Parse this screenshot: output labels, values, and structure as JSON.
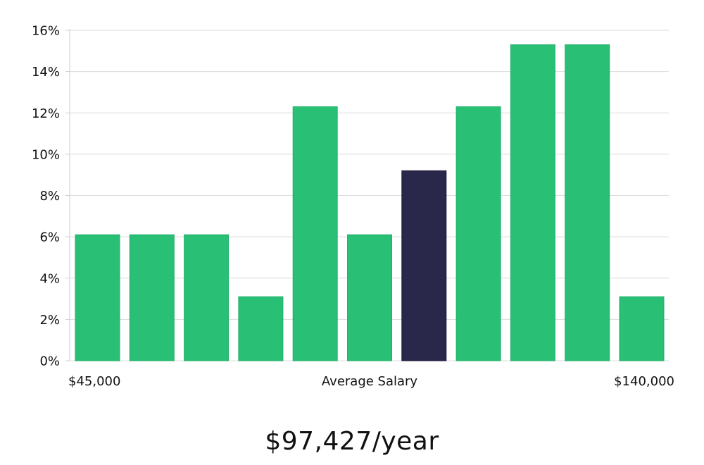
{
  "chart_data": {
    "type": "bar",
    "x_min_label": "$45,000",
    "x_center_label": "Average Salary",
    "x_max_label": "$140,000",
    "values": [
      6.1,
      6.1,
      6.1,
      3.1,
      12.3,
      6.1,
      9.2,
      12.3,
      15.3,
      15.3,
      3.1
    ],
    "highlight_index": 6,
    "ylim": [
      0,
      16
    ],
    "yticks": [
      0,
      2,
      4,
      6,
      8,
      10,
      12,
      14,
      16
    ],
    "ytick_labels": [
      "0%",
      "2%",
      "4%",
      "6%",
      "8%",
      "10%",
      "12%",
      "14%",
      "16%"
    ],
    "grid": true,
    "colors": {
      "bar": "#29bf75",
      "highlight": "#29274a"
    }
  },
  "salary_text": "$97,427/year"
}
